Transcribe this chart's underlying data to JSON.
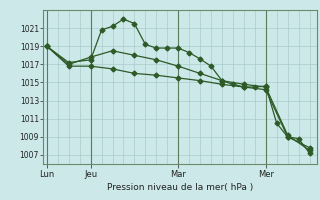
{
  "background_color": "#cce8e8",
  "grid_color": "#aacccc",
  "line_color": "#2d5a27",
  "ylim": [
    1006,
    1023
  ],
  "yticks": [
    1007,
    1009,
    1011,
    1013,
    1015,
    1017,
    1019,
    1021
  ],
  "xlabel": "Pression niveau de la mer( hPa )",
  "day_labels": [
    "Lun",
    "Jeu",
    "Mar",
    "Mer"
  ],
  "day_positions": [
    0,
    24,
    72,
    120
  ],
  "xmax": 148,
  "series1_x": [
    0,
    12,
    24,
    30,
    36,
    42,
    48,
    54,
    60,
    66,
    72,
    78,
    84,
    90,
    96,
    102,
    108,
    114,
    120,
    126,
    132,
    138,
    144
  ],
  "series1_y": [
    1019.0,
    1017.2,
    1017.5,
    1020.8,
    1021.2,
    1022.0,
    1021.5,
    1019.2,
    1018.8,
    1018.8,
    1018.8,
    1018.3,
    1017.6,
    1016.8,
    1015.2,
    1014.8,
    1014.5,
    1014.5,
    1014.6,
    1010.5,
    1009.0,
    1008.8,
    1007.2
  ],
  "series2_x": [
    0,
    12,
    24,
    36,
    48,
    60,
    72,
    84,
    96,
    108,
    120,
    132,
    144
  ],
  "series2_y": [
    1019.0,
    1017.0,
    1017.8,
    1018.5,
    1018.0,
    1017.5,
    1016.8,
    1016.0,
    1015.2,
    1014.8,
    1014.5,
    1009.2,
    1007.5
  ],
  "series3_x": [
    0,
    12,
    24,
    36,
    48,
    60,
    72,
    84,
    96,
    108,
    120,
    132,
    144
  ],
  "series3_y": [
    1019.0,
    1016.8,
    1016.8,
    1016.5,
    1016.0,
    1015.8,
    1015.5,
    1015.2,
    1014.8,
    1014.5,
    1014.2,
    1009.0,
    1007.8
  ]
}
